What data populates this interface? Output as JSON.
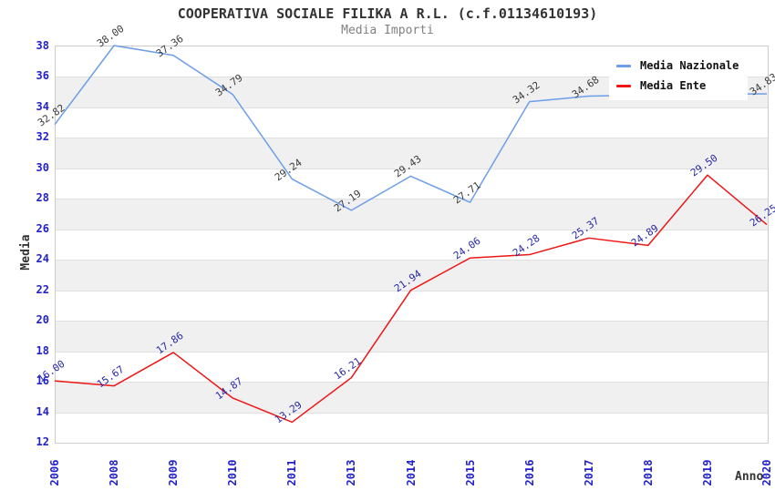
{
  "chart_data": {
    "type": "line",
    "title": "COOPERATIVA SOCIALE FILIKA A R.L. (c.f.01134610193)",
    "subtitle": "Media Importi",
    "xlabel": "Anno",
    "ylabel": "Media",
    "ylim": [
      12,
      38
    ],
    "y_tick_step": 2,
    "grid": "horizontal-bands",
    "legend_position": "top-right",
    "categories": [
      "2006",
      "2008",
      "2009",
      "2010",
      "2011",
      "2013",
      "2014",
      "2015",
      "2016",
      "2017",
      "2018",
      "2019",
      "2020"
    ],
    "series": [
      {
        "name": "Media Nazionale",
        "color": "#6d9ee8",
        "label_color": "#3c3c3c",
        "values": [
          32.82,
          38.0,
          37.36,
          34.79,
          29.24,
          27.19,
          29.43,
          27.71,
          34.32,
          34.68,
          34.75,
          34.8,
          34.83
        ],
        "labels": [
          "32.82",
          "38.00",
          "37.36",
          "34.79",
          "29.24",
          "27.19",
          "29.43",
          "27.71",
          "34.32",
          "34.68",
          null,
          null,
          "34.83"
        ]
      },
      {
        "name": "Media Ente",
        "color": "#ee1515",
        "label_color": "#2828a8",
        "values": [
          16.0,
          15.67,
          17.86,
          14.87,
          13.29,
          16.21,
          21.94,
          24.06,
          24.28,
          25.37,
          24.89,
          29.5,
          26.25
        ],
        "labels": [
          "16.00",
          "15.67",
          "17.86",
          "14.87",
          "13.29",
          "16.21",
          "21.94",
          "24.06",
          "24.28",
          "25.37",
          "24.89",
          "29.50",
          "26.25"
        ]
      }
    ],
    "colors": {
      "axis_tick": "#2222cc",
      "band": "#f0f0f0",
      "grid": "#e0e0e0",
      "plot_border": "#cccccc",
      "title": "#333333",
      "subtitle": "#808080"
    }
  }
}
